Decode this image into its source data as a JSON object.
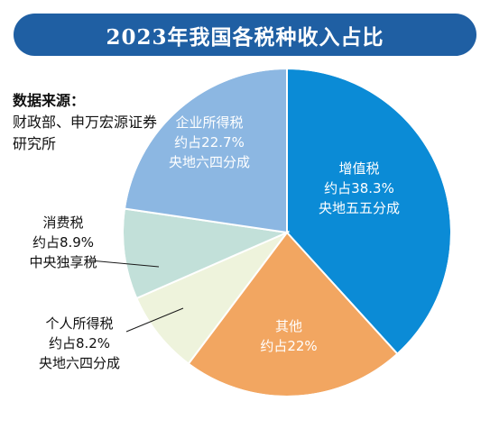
{
  "header": {
    "title": "2023年我国各税种收入占比"
  },
  "source": {
    "label": "数据来源：",
    "text": "财政部、申万宏源证券研究所"
  },
  "colors": {
    "banner": "#1f5fa3",
    "vat": "#0b8bd6",
    "other": "#f2a661",
    "personal": "#eef3dc",
    "consumption": "#c2e0d9",
    "corporate": "#8cb7e2",
    "stroke": "#1a1a1a"
  },
  "chart_data": {
    "type": "pie",
    "title": "2023年我国各税种收入占比",
    "slices": [
      {
        "name": "增值税",
        "value": 38.3,
        "value_text": "约占38.3%",
        "note": "央地五五分成",
        "color": "#0b8bd6",
        "label_color": "#ffffff"
      },
      {
        "name": "其他",
        "value": 22,
        "value_text": "约占22%",
        "note": "",
        "color": "#f2a661",
        "label_color": "#ffffff"
      },
      {
        "name": "个人所得税",
        "value": 8.2,
        "value_text": "约占8.2%",
        "note": "央地六四分成",
        "color": "#eef3dc",
        "label_color": "#111111"
      },
      {
        "name": "消费税",
        "value": 8.9,
        "value_text": "约占8.9%",
        "note": "中央独享税",
        "color": "#c2e0d9",
        "label_color": "#111111"
      },
      {
        "name": "企业所得税",
        "value": 22.7,
        "value_text": "约占22.7%",
        "note": "央地六四分成",
        "color": "#8cb7e2",
        "label_color": "#ffffff"
      }
    ]
  }
}
